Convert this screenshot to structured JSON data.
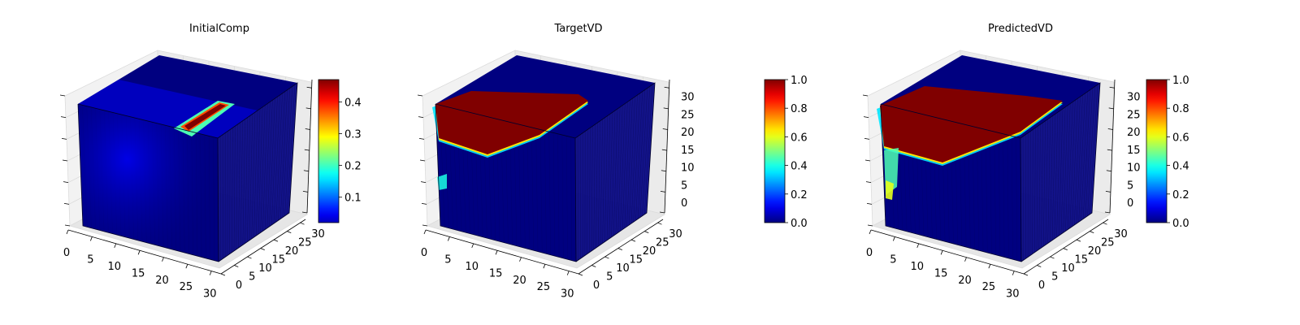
{
  "chart_data": [
    {
      "type": "heatmap",
      "subtype": "3d-voxel",
      "title": "InitialComp",
      "xlim": [
        0,
        32
      ],
      "ylim": [
        0,
        32
      ],
      "zlim": [
        0,
        32
      ],
      "xticks": [
        "0",
        "5",
        "10",
        "15",
        "20",
        "25",
        "30"
      ],
      "yticks": [
        "0",
        "5",
        "10",
        "15",
        "20",
        "25",
        "30"
      ],
      "zticks": [],
      "colormap": "jet",
      "vmin": 0.02,
      "vmax": 0.47,
      "colorbar_ticks": [
        "0.1",
        "0.2",
        "0.3",
        "0.4"
      ],
      "colorbar_values": [
        0.1,
        0.2,
        0.3,
        0.4
      ],
      "features": {
        "background_value": 0.02,
        "front_face_value": 0.07,
        "stripe_value": 0.45
      }
    },
    {
      "type": "heatmap",
      "subtype": "3d-voxel",
      "title": "TargetVD",
      "xlim": [
        0,
        32
      ],
      "ylim": [
        0,
        32
      ],
      "zlim": [
        0,
        32
      ],
      "xticks": [
        "0",
        "5",
        "10",
        "15",
        "20",
        "25",
        "30"
      ],
      "yticks": [
        "0",
        "5",
        "10",
        "15",
        "20",
        "25",
        "30"
      ],
      "zticks": [
        "0",
        "5",
        "10",
        "15",
        "20",
        "25",
        "30"
      ],
      "colormap": "jet",
      "vmin": 0.0,
      "vmax": 1.0,
      "colorbar_ticks": [
        "0.0",
        "0.2",
        "0.4",
        "0.6",
        "0.8",
        "1.0"
      ],
      "colorbar_values": [
        0.0,
        0.2,
        0.4,
        0.6,
        0.8,
        1.0
      ],
      "features": {
        "background_value": 0.0,
        "region_value": 1.0
      }
    },
    {
      "type": "heatmap",
      "subtype": "3d-voxel",
      "title": "PredictedVD",
      "xlim": [
        0,
        32
      ],
      "ylim": [
        0,
        32
      ],
      "zlim": [
        0,
        32
      ],
      "xticks": [
        "0",
        "5",
        "10",
        "15",
        "20",
        "25",
        "30"
      ],
      "yticks": [
        "0",
        "5",
        "10",
        "15",
        "20",
        "25",
        "30"
      ],
      "zticks": [
        "0",
        "5",
        "10",
        "15",
        "20",
        "25",
        "30"
      ],
      "colormap": "jet",
      "vmin": 0.0,
      "vmax": 1.0,
      "colorbar_ticks": [
        "0.0",
        "0.2",
        "0.4",
        "0.6",
        "0.8",
        "1.0"
      ],
      "colorbar_values": [
        0.0,
        0.2,
        0.4,
        0.6,
        0.8,
        1.0
      ],
      "features": {
        "background_value": 0.0,
        "region_value": 1.0
      }
    }
  ]
}
